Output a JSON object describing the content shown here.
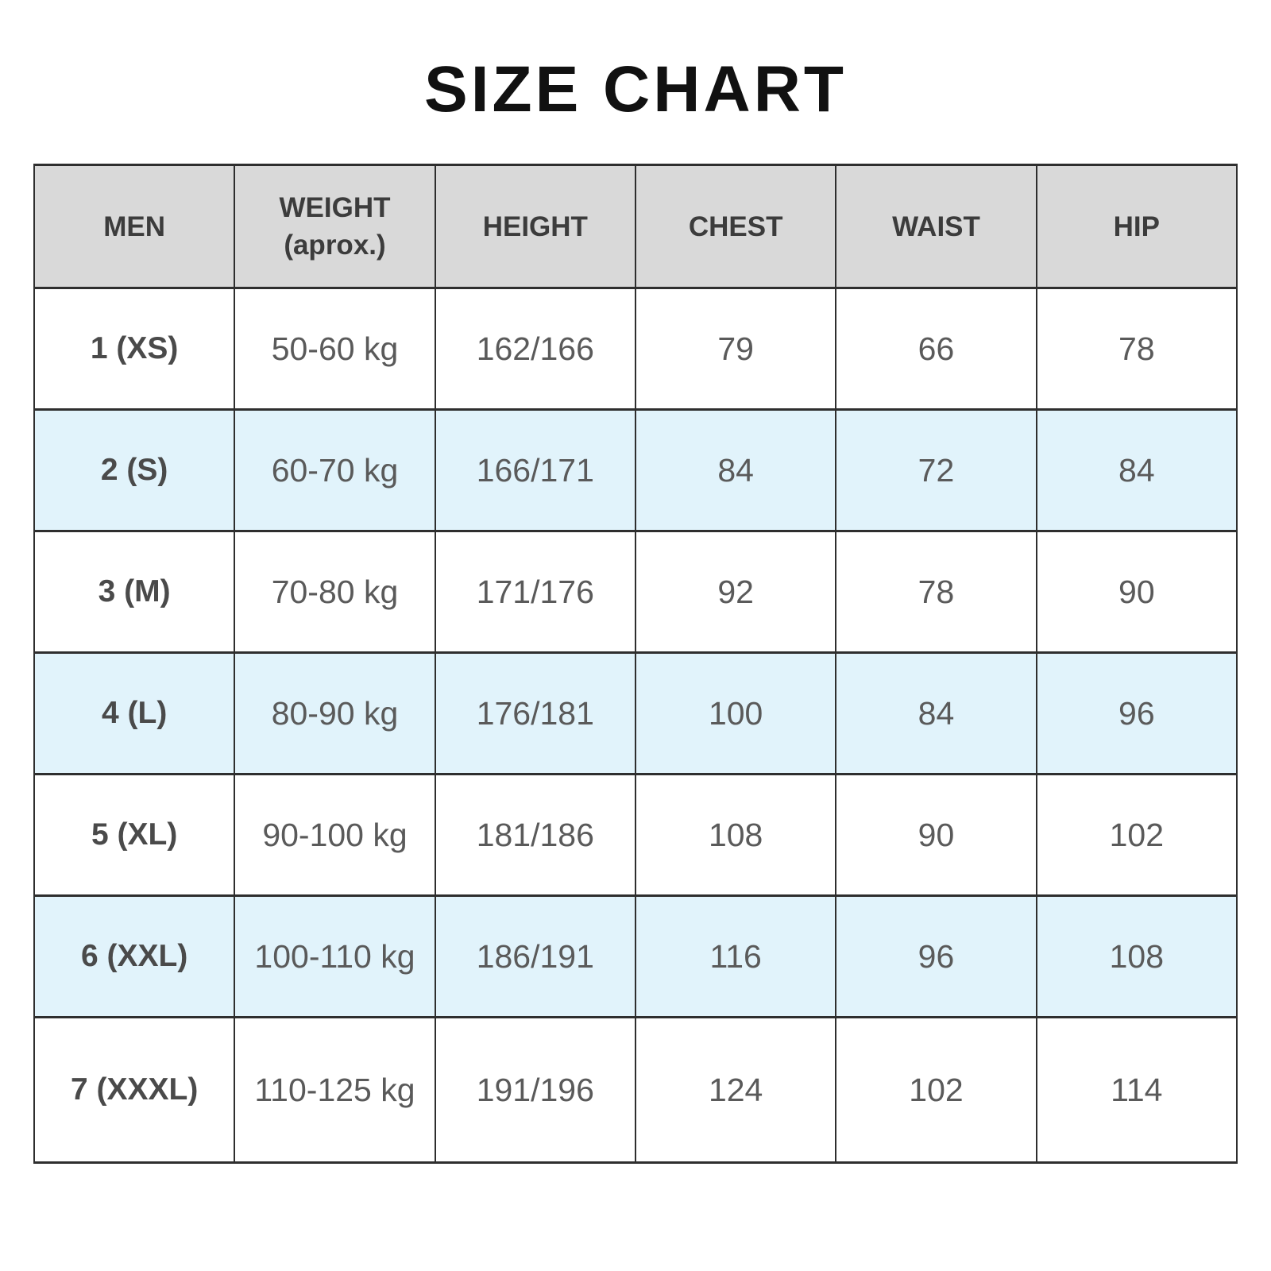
{
  "title": "SIZE CHART",
  "colors": {
    "page_bg": "#ffffff",
    "header_bg": "#d9d9d9",
    "alt_row_bg": "#e1f3fb",
    "border": "#2e2e2e",
    "title_text": "#111111",
    "header_text": "#3c3c3c",
    "size_col_text": "#4a4a4a",
    "data_text": "#5a5a5a"
  },
  "table": {
    "columns": [
      "MEN",
      "WEIGHT (aprox.)",
      "HEIGHT",
      "CHEST",
      "WAIST",
      "HIP"
    ],
    "header_lines": [
      [
        "MEN"
      ],
      [
        "WEIGHT",
        "(aprox.)"
      ],
      [
        "HEIGHT"
      ],
      [
        "CHEST"
      ],
      [
        "WAIST"
      ],
      [
        "HIP"
      ]
    ],
    "column_keys": [
      "size",
      "weight",
      "height",
      "chest",
      "waist",
      "hip"
    ],
    "rows": [
      {
        "size": "1 (XS)",
        "weight": "50-60 kg",
        "height": "162/166",
        "chest": "79",
        "waist": "66",
        "hip": "78"
      },
      {
        "size": "2 (S)",
        "weight": "60-70 kg",
        "height": "166/171",
        "chest": "84",
        "waist": "72",
        "hip": "84"
      },
      {
        "size": "3 (M)",
        "weight": "70-80 kg",
        "height": "171/176",
        "chest": "92",
        "waist": "78",
        "hip": "90"
      },
      {
        "size": "4 (L)",
        "weight": "80-90 kg",
        "height": "176/181",
        "chest": "100",
        "waist": "84",
        "hip": "96"
      },
      {
        "size": "5 (XL)",
        "weight": "90-100 kg",
        "height": "181/186",
        "chest": "108",
        "waist": "90",
        "hip": "102"
      },
      {
        "size": "6 (XXL)",
        "weight": "100-110 kg",
        "height": "186/191",
        "chest": "116",
        "waist": "96",
        "hip": "108"
      },
      {
        "size": "7 (XXXL)",
        "weight": "110-125 kg",
        "height": "191/196",
        "chest": "124",
        "waist": "102",
        "hip": "114"
      }
    ]
  }
}
